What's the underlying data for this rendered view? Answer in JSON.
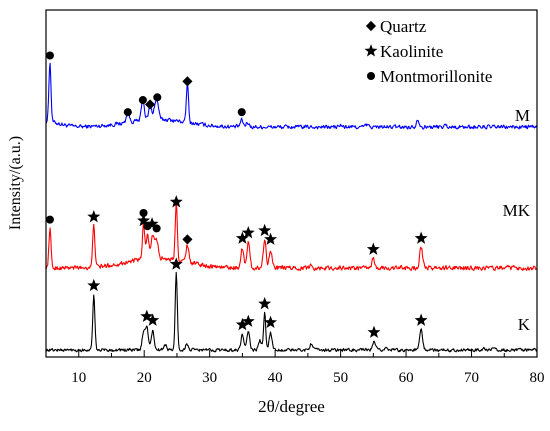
{
  "chart_data": {
    "type": "line",
    "xlabel": "2θ/degree",
    "ylabel": "Intensity/(a.u.)",
    "xlim": [
      5,
      80
    ],
    "xticks": [
      10,
      20,
      30,
      40,
      50,
      60,
      70,
      80
    ],
    "grid": false,
    "legend_position": "top-right",
    "legend": [
      {
        "symbol": "diamond",
        "label": "Quartz"
      },
      {
        "symbol": "star",
        "label": "Kaolinite"
      },
      {
        "symbol": "circle",
        "label": "Montmorillonite"
      }
    ],
    "series": [
      {
        "name": "M",
        "color": "#0000ff",
        "peaks": [
          [
            5.6,
            108
          ],
          [
            17.5,
            18
          ],
          [
            19.8,
            38
          ],
          [
            20.9,
            24
          ],
          [
            21.6,
            20
          ],
          [
            22.0,
            30
          ],
          [
            26.6,
            72
          ],
          [
            34.9,
            12
          ],
          [
            35.8,
            8
          ],
          [
            61.8,
            14
          ],
          [
            50.0,
            3
          ],
          [
            54.0,
            4
          ],
          [
            66.0,
            3
          ]
        ],
        "markers": [
          {
            "x": 5.6,
            "y": 130,
            "symbol": "circle"
          },
          {
            "x": 17.5,
            "y": 27,
            "symbol": "circle"
          },
          {
            "x": 19.8,
            "y": 49,
            "symbol": "circle"
          },
          {
            "x": 20.9,
            "y": 41,
            "symbol": "diamond"
          },
          {
            "x": 22.0,
            "y": 54,
            "symbol": "circle"
          },
          {
            "x": 26.6,
            "y": 83,
            "symbol": "diamond"
          },
          {
            "x": 34.9,
            "y": 27,
            "symbol": "circle"
          }
        ]
      },
      {
        "name": "MK",
        "color": "#ff0000",
        "peaks": [
          [
            5.6,
            72
          ],
          [
            12.3,
            80
          ],
          [
            19.9,
            65
          ],
          [
            20.5,
            44
          ],
          [
            21.3,
            42
          ],
          [
            21.9,
            34
          ],
          [
            24.9,
            105
          ],
          [
            26.6,
            32
          ],
          [
            35.0,
            36
          ],
          [
            35.9,
            46
          ],
          [
            38.4,
            50
          ],
          [
            39.3,
            34
          ],
          [
            45.5,
            5
          ],
          [
            55.0,
            16
          ],
          [
            62.3,
            38
          ]
        ],
        "markers": [
          {
            "x": 5.6,
            "y": 88,
            "symbol": "circle"
          },
          {
            "x": 12.3,
            "y": 93,
            "symbol": "star"
          },
          {
            "x": 19.9,
            "y": 100,
            "symbol": "circle"
          },
          {
            "x": 19.9,
            "y": 86,
            "symbol": "star"
          },
          {
            "x": 20.5,
            "y": 76,
            "symbol": "circle"
          },
          {
            "x": 21.2,
            "y": 80,
            "symbol": "star"
          },
          {
            "x": 21.9,
            "y": 72,
            "symbol": "circle"
          },
          {
            "x": 24.9,
            "y": 120,
            "symbol": "star"
          },
          {
            "x": 26.6,
            "y": 52,
            "symbol": "diamond"
          },
          {
            "x": 35.0,
            "y": 54,
            "symbol": "star"
          },
          {
            "x": 35.9,
            "y": 64,
            "symbol": "star"
          },
          {
            "x": 38.4,
            "y": 68,
            "symbol": "star"
          },
          {
            "x": 39.3,
            "y": 52,
            "symbol": "star"
          },
          {
            "x": 55.0,
            "y": 34,
            "symbol": "star"
          },
          {
            "x": 62.3,
            "y": 54,
            "symbol": "star"
          }
        ]
      },
      {
        "name": "K",
        "color": "#000000",
        "peaks": [
          [
            12.3,
            100
          ],
          [
            19.9,
            30
          ],
          [
            20.4,
            42
          ],
          [
            21.3,
            34
          ],
          [
            23.2,
            10
          ],
          [
            24.9,
            140
          ],
          [
            26.5,
            10
          ],
          [
            35.0,
            28
          ],
          [
            35.9,
            32
          ],
          [
            37.7,
            18
          ],
          [
            38.4,
            66
          ],
          [
            39.3,
            32
          ],
          [
            45.5,
            12
          ],
          [
            55.1,
            14
          ],
          [
            57.0,
            5
          ],
          [
            62.3,
            38
          ],
          [
            72.0,
            3
          ],
          [
            73.5,
            4
          ]
        ],
        "markers": [
          {
            "x": 12.3,
            "y": 117,
            "symbol": "star"
          },
          {
            "x": 20.4,
            "y": 61,
            "symbol": "star"
          },
          {
            "x": 21.3,
            "y": 54,
            "symbol": "star"
          },
          {
            "x": 24.9,
            "y": 156,
            "symbol": "star"
          },
          {
            "x": 35.0,
            "y": 46,
            "symbol": "star"
          },
          {
            "x": 35.9,
            "y": 52,
            "symbol": "star"
          },
          {
            "x": 38.4,
            "y": 84,
            "symbol": "star"
          },
          {
            "x": 39.3,
            "y": 50,
            "symbol": "star"
          },
          {
            "x": 55.1,
            "y": 32,
            "symbol": "star"
          },
          {
            "x": 62.3,
            "y": 54,
            "symbol": "star"
          }
        ]
      }
    ]
  }
}
